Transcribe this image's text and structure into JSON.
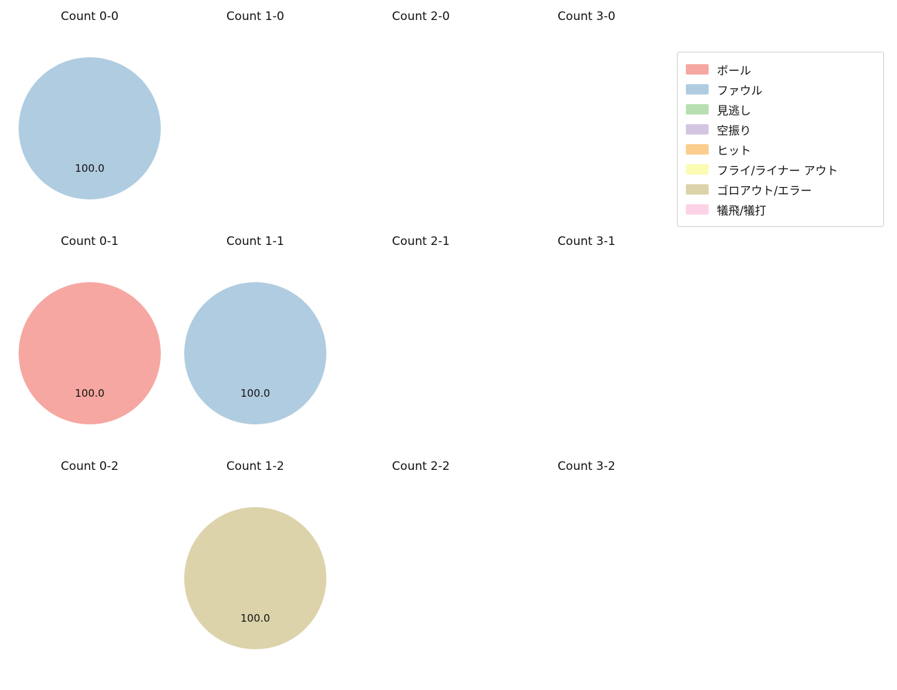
{
  "chart_data": {
    "type": "pie",
    "layout": {
      "rows": 3,
      "cols": 4
    },
    "grid_on": false,
    "charts": [
      {
        "title": "Count 0-0",
        "row": 0,
        "col": 0,
        "slices": [
          {
            "label": "ファウル",
            "value": 100.0
          }
        ]
      },
      {
        "title": "Count 1-0",
        "row": 0,
        "col": 1,
        "slices": []
      },
      {
        "title": "Count 2-0",
        "row": 0,
        "col": 2,
        "slices": []
      },
      {
        "title": "Count 3-0",
        "row": 0,
        "col": 3,
        "slices": []
      },
      {
        "title": "Count 0-1",
        "row": 1,
        "col": 0,
        "slices": [
          {
            "label": "ボール",
            "value": 100.0
          }
        ]
      },
      {
        "title": "Count 1-1",
        "row": 1,
        "col": 1,
        "slices": [
          {
            "label": "ファウル",
            "value": 100.0
          }
        ]
      },
      {
        "title": "Count 2-1",
        "row": 1,
        "col": 2,
        "slices": []
      },
      {
        "title": "Count 3-1",
        "row": 1,
        "col": 3,
        "slices": []
      },
      {
        "title": "Count 0-2",
        "row": 2,
        "col": 0,
        "slices": []
      },
      {
        "title": "Count 1-2",
        "row": 2,
        "col": 1,
        "slices": [
          {
            "label": "ゴロアウト/エラー",
            "value": 100.0
          }
        ]
      },
      {
        "title": "Count 2-2",
        "row": 2,
        "col": 2,
        "slices": []
      },
      {
        "title": "Count 3-2",
        "row": 2,
        "col": 3,
        "slices": []
      }
    ],
    "legend": {
      "position": "upper-right",
      "entries": [
        {
          "label": "ボール",
          "color": "#f6a7a1"
        },
        {
          "label": "ファウル",
          "color": "#b0cce0"
        },
        {
          "label": "見逃し",
          "color": "#b8dfb2"
        },
        {
          "label": "空振り",
          "color": "#d4c6e2"
        },
        {
          "label": "ヒット",
          "color": "#fbcd8e"
        },
        {
          "label": "フライ/ライナー アウト",
          "color": "#fbfbb4"
        },
        {
          "label": "ゴロアウト/エラー",
          "color": "#dcd3ab"
        },
        {
          "label": "犠飛/犠打",
          "color": "#fcd3e6"
        }
      ]
    }
  }
}
